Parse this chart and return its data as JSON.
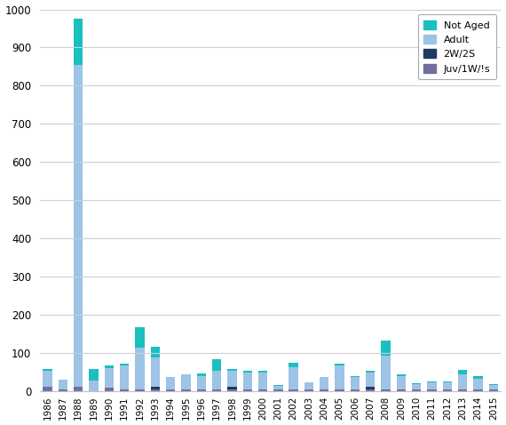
{
  "years": [
    1986,
    1987,
    1988,
    1989,
    1990,
    1991,
    1992,
    1993,
    1994,
    1995,
    1996,
    1997,
    1998,
    1999,
    2000,
    2001,
    2002,
    2003,
    2004,
    2005,
    2006,
    2007,
    2008,
    2009,
    2010,
    2011,
    2012,
    2013,
    2014,
    2015
  ],
  "not_aged": [
    5,
    0,
    120,
    30,
    8,
    5,
    55,
    28,
    0,
    0,
    8,
    30,
    5,
    5,
    5,
    3,
    10,
    0,
    0,
    5,
    3,
    5,
    40,
    5,
    3,
    3,
    3,
    12,
    5,
    3
  ],
  "adult": [
    42,
    25,
    845,
    28,
    52,
    62,
    108,
    78,
    32,
    38,
    33,
    48,
    43,
    43,
    43,
    8,
    58,
    18,
    32,
    62,
    32,
    38,
    88,
    33,
    12,
    18,
    18,
    38,
    28,
    10
  ],
  "two_w_2s": [
    0,
    0,
    0,
    0,
    0,
    0,
    0,
    5,
    0,
    0,
    0,
    0,
    5,
    0,
    0,
    0,
    0,
    0,
    0,
    0,
    0,
    5,
    0,
    0,
    0,
    0,
    0,
    0,
    0,
    0
  ],
  "juv_1w_ls": [
    10,
    5,
    10,
    0,
    8,
    5,
    5,
    5,
    5,
    5,
    5,
    5,
    5,
    5,
    5,
    5,
    5,
    5,
    5,
    5,
    5,
    5,
    5,
    5,
    5,
    5,
    5,
    5,
    5,
    5
  ],
  "colors": {
    "not_aged": "#1ABFBF",
    "adult": "#9DC3E6",
    "two_w_2s": "#203864",
    "juv_1w_ls": "#7070A0"
  },
  "ylim": [
    0,
    1000
  ],
  "yticks": [
    0,
    100,
    200,
    300,
    400,
    500,
    600,
    700,
    800,
    900,
    1000
  ],
  "background_color": "#FFFFFF",
  "grid_color": "#D0D0D0",
  "figsize": [
    5.7,
    4.78
  ],
  "dpi": 100
}
